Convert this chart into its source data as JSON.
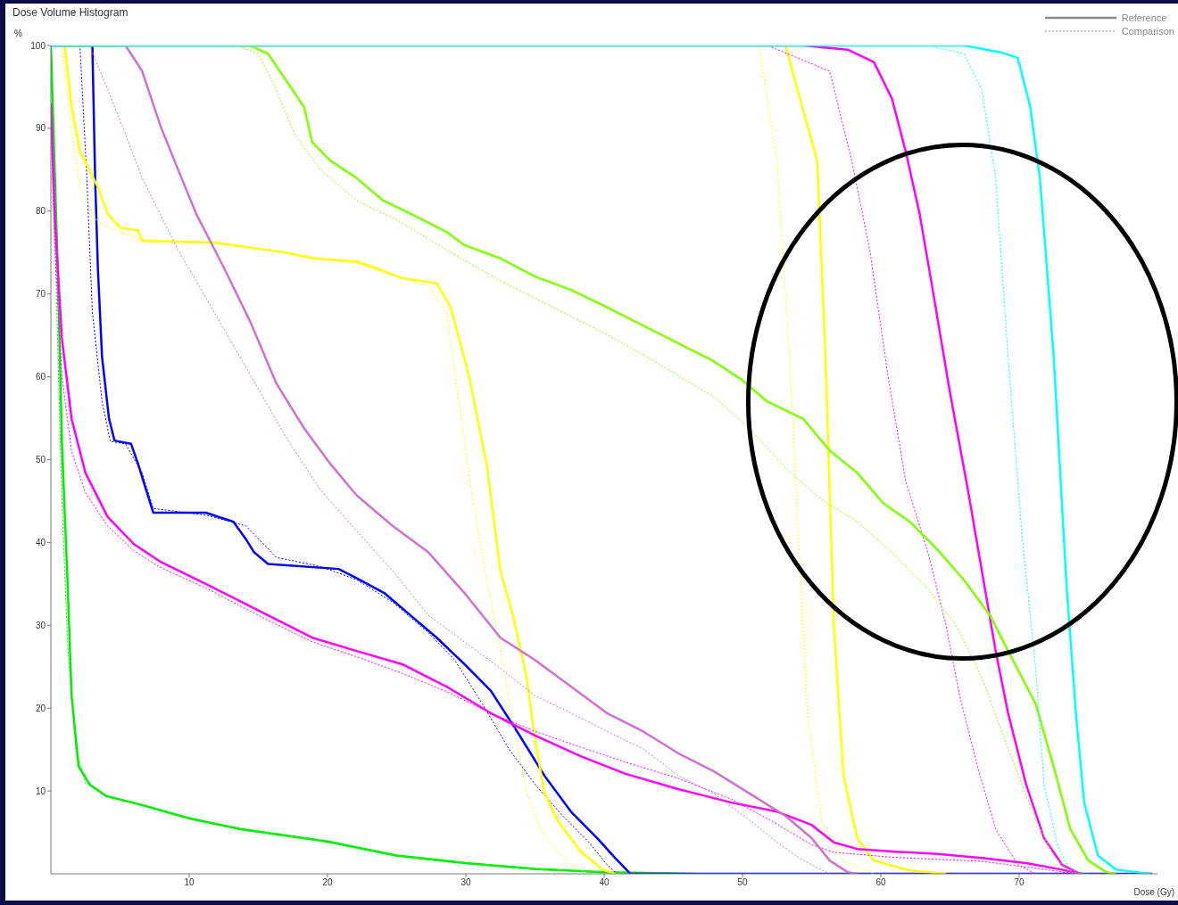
{
  "chart_data": {
    "type": "line",
    "title": "Dose Volume Histogram",
    "xlabel": "Dose (Gy)",
    "ylabel": "%",
    "annotations": [
      "Reference",
      "Comparison"
    ],
    "xlim": [
      0,
      80
    ],
    "xticks": [
      10,
      20,
      30,
      40,
      50,
      60,
      70
    ],
    "ylim": [
      0,
      100
    ],
    "yticks": [
      10,
      20,
      30,
      40,
      50,
      60,
      70,
      80,
      90,
      100
    ],
    "grid": false,
    "series": [
      {
        "color": "#00ee00",
        "line_style": "dotted",
        "x": [
          0,
          0.4,
          0.8,
          1.2,
          1.8,
          2.5,
          4,
          6.6,
          10,
          13.7,
          20,
          25,
          30,
          35,
          40,
          43,
          46.6
        ],
        "values": [
          100,
          70,
          45,
          28,
          15,
          11,
          9.3,
          8.2,
          6.6,
          5.3,
          3.8,
          2.1,
          1.2,
          0.5,
          0.2,
          0.1,
          0
        ]
      },
      {
        "color": "#00ee00",
        "line_style": "solid",
        "x": [
          0,
          0.5,
          0.8,
          1.2,
          1.5,
          2,
          2.8,
          4,
          6.6,
          10,
          13.7,
          20,
          25,
          30,
          35,
          40,
          43,
          46.6
        ],
        "values": [
          100,
          73,
          52,
          35.5,
          21.5,
          13,
          10.8,
          9.4,
          8.3,
          6.7,
          5.4,
          3.9,
          2.2,
          1.3,
          0.6,
          0.2,
          0.1,
          0
        ]
      },
      {
        "color": "#0000ff",
        "line_style": "dotted",
        "x": [
          0,
          2.1,
          2.6,
          3,
          3.7,
          4.3,
          5.4,
          6.6,
          7.4,
          11.2,
          14.1,
          16.3,
          19.5,
          22.1,
          24.7,
          27.3,
          29.2,
          31.2,
          33.1,
          35,
          37,
          38.9,
          40.2,
          40.8
        ],
        "values": [
          100,
          100,
          84,
          67.8,
          57,
          52.2,
          51.9,
          48.4,
          44.1,
          43.3,
          42,
          38.2,
          37.1,
          35.5,
          32.8,
          29.1,
          25.8,
          20.5,
          15.1,
          10.8,
          7,
          3.8,
          1.1,
          0.2
        ]
      },
      {
        "color": "#0000ff",
        "line_style": "solid",
        "x": [
          0,
          2.8,
          3,
          3.2,
          3.4,
          3.7,
          4.2,
          4.6,
          5.8,
          6.3,
          6.8,
          7.4,
          11.2,
          13.2,
          14.1,
          14.7,
          15.7,
          20.8,
          22.1,
          24.1,
          26,
          27.9,
          29.9,
          31.8,
          33.7,
          35.7,
          37.6,
          39.5,
          40.8,
          41.9,
          79.6
        ],
        "values": [
          100,
          100,
          100,
          84,
          73,
          62.4,
          55,
          52.3,
          51.9,
          49.5,
          46.8,
          43.6,
          43.6,
          42.5,
          40.4,
          38.8,
          37.4,
          36.8,
          35.7,
          33.9,
          31.2,
          28.5,
          25.3,
          22.1,
          17.2,
          11.8,
          7.5,
          4.3,
          1.9,
          0,
          0
        ]
      },
      {
        "color": "#ffff00",
        "line_style": "dotted",
        "x": [
          0.8,
          1.5,
          2.1,
          3.4,
          4.7,
          6.6,
          11.8,
          17,
          22.1,
          25.4,
          27.3,
          28.6,
          29.5,
          30.5,
          31.5,
          32.5,
          33.4,
          34.4,
          35.7,
          37.6,
          38.9
        ],
        "values": [
          100,
          89.3,
          82.9,
          78.6,
          77.7,
          76.6,
          76.2,
          75,
          73.7,
          71.9,
          71,
          67.8,
          57,
          45.2,
          35.5,
          26.9,
          18.3,
          9.7,
          4.3,
          1.1,
          0
        ]
      },
      {
        "color": "#ffff00",
        "line_style": "solid",
        "x": [
          1,
          1.5,
          2.1,
          3.4,
          4.1,
          5,
          6.3,
          6.6,
          11.8,
          17,
          18.9,
          22.1,
          23.4,
          25.4,
          27.9,
          28.9,
          30.2,
          31.5,
          32.5,
          33.4,
          34.4,
          35,
          35.7,
          36.6,
          38.3,
          39.9,
          40.8
        ],
        "values": [
          100,
          92.6,
          87.2,
          82.9,
          79.7,
          78,
          77.7,
          76.4,
          76.2,
          75,
          74.3,
          73.9,
          73.2,
          71.9,
          71.3,
          68.4,
          60.3,
          49.5,
          36.6,
          31.2,
          23.7,
          16.1,
          9.7,
          6.5,
          2.7,
          0.5,
          0
        ]
      },
      {
        "color": "#ffff00",
        "line_style": "dotted",
        "x": [
          0,
          51.2,
          52.5,
          53.4,
          54.2,
          54.7,
          55.7,
          57.3,
          59.5
        ],
        "values": [
          100,
          100,
          86.1,
          62.4,
          35.5,
          19.4,
          6.5,
          1.6,
          0
        ]
      },
      {
        "color": "#ffff00",
        "line_style": "solid",
        "x": [
          0,
          53.1,
          55.4,
          56,
          56.6,
          57.3,
          58.3,
          59.5,
          62.1,
          64.7
        ],
        "values": [
          100,
          100,
          86.1,
          62.4,
          30.1,
          11.8,
          4.3,
          1.6,
          0.4,
          0
        ]
      },
      {
        "color": "#ff00ff",
        "line_style": "dotted",
        "x": [
          0,
          0.3,
          0.8,
          1.5,
          2.5,
          4.1,
          6,
          7.9,
          11.2,
          15.7,
          18.9,
          22.1,
          25.4,
          28.6,
          31.8,
          35,
          38.3,
          41.5,
          45.4,
          49.2,
          52.5,
          55,
          56.6,
          60.8,
          67.3,
          72,
          74
        ],
        "values": [
          90,
          75,
          60,
          51,
          46,
          42,
          39,
          37,
          34.5,
          30.6,
          28,
          26.2,
          24.2,
          22,
          19.4,
          17.2,
          15.3,
          13.5,
          11.5,
          9,
          6,
          3.5,
          2.6,
          2,
          1.5,
          0.5,
          0
        ]
      },
      {
        "color": "#ff00ff",
        "line_style": "solid",
        "x": [
          0,
          0.3,
          0.8,
          1.5,
          2.5,
          4.1,
          6,
          7.9,
          11.2,
          15.7,
          18.9,
          22.1,
          25.4,
          28.6,
          31.8,
          35,
          38.3,
          41.5,
          45.4,
          49.2,
          52.5,
          55,
          56.6,
          58.3,
          60.8,
          64.1,
          67.3,
          70.5,
          73.1,
          74.4
        ],
        "values": [
          93,
          78.6,
          64.6,
          54.9,
          48.4,
          43.1,
          39.8,
          37.7,
          35,
          31.2,
          28.5,
          26.9,
          25.3,
          22.6,
          19.4,
          16.7,
          14.2,
          12.1,
          10.2,
          8.6,
          7.5,
          5.9,
          3.8,
          3,
          2.7,
          2.4,
          1.9,
          1.3,
          0.5,
          0
        ]
      },
      {
        "color": "#ff00ff",
        "line_style": "dotted",
        "x": [
          0,
          51.8,
          56.3,
          57.9,
          59.2,
          60.5,
          61.8,
          63.4,
          64.7,
          65.7,
          67,
          68.3,
          69.9,
          71.2
        ],
        "values": [
          100,
          100,
          96.9,
          86.1,
          75.3,
          60.3,
          47.4,
          38.8,
          30.1,
          21.5,
          12.9,
          5.4,
          1.1,
          0
        ]
      },
      {
        "color": "#ff00ff",
        "line_style": "solid",
        "x": [
          0,
          54.4,
          57.6,
          59.5,
          60.8,
          61.8,
          62.8,
          63.7,
          65,
          66.3,
          67.3,
          68.3,
          69.2,
          70.5,
          71.8,
          73.1,
          74.4
        ],
        "values": [
          100,
          100,
          99.5,
          98,
          93.6,
          87.2,
          79.7,
          71,
          58.1,
          46.3,
          36.6,
          26.9,
          19.4,
          10.8,
          4.3,
          1.1,
          0
        ]
      },
      {
        "color": "#d070d0",
        "line_style": "dotted",
        "x": [
          0,
          2.8,
          4.1,
          5.4,
          6.6,
          9.2,
          11.8,
          14.4,
          17,
          19.5,
          22.1,
          24.7,
          27.3,
          29.9,
          32.5,
          35,
          37.6,
          40.2,
          42.8,
          45.4,
          47.9,
          50.5,
          52.5,
          54.4,
          56.3
        ],
        "values": [
          100,
          100,
          94.7,
          89.3,
          84,
          75.3,
          67.8,
          60.3,
          52.7,
          46.3,
          41.4,
          36.6,
          31.2,
          28,
          24.8,
          21.5,
          19.4,
          17.2,
          15.1,
          11.8,
          9.7,
          6.5,
          3.8,
          1.6,
          0
        ]
      },
      {
        "color": "#d070d0",
        "line_style": "solid",
        "x": [
          0,
          5.4,
          6.6,
          7.9,
          9.2,
          10.5,
          12.5,
          14.4,
          16.3,
          18.3,
          20.2,
          22.1,
          24.7,
          27.3,
          29.9,
          32.5,
          35,
          37.6,
          40.2,
          42.8,
          45.4,
          47.9,
          50.5,
          53.1,
          55,
          56.3,
          57.6,
          58.3
        ],
        "values": [
          100,
          100,
          96.9,
          90.4,
          85,
          79.7,
          73.2,
          66.7,
          59.2,
          53.8,
          49.5,
          45.7,
          42,
          38.8,
          33.9,
          28.5,
          25.8,
          22.6,
          19.4,
          17.2,
          14.5,
          12.4,
          9.7,
          7,
          4.3,
          1.6,
          0.2,
          0
        ]
      },
      {
        "color": "#80ff00",
        "line_style": "dotted",
        "x": [
          0,
          13.4,
          15,
          16.3,
          17.6,
          19.5,
          22.1,
          25.4,
          28.6,
          32.5,
          36.3,
          40.2,
          44.1,
          47.9,
          50.5,
          53.1,
          55.7,
          58.3,
          60.8,
          63.4,
          65.4,
          67.3,
          69.2,
          71.2,
          72.5,
          73.7,
          74.7
        ],
        "values": [
          100,
          100,
          99,
          94.7,
          89.3,
          85,
          81.3,
          78.6,
          75.3,
          71.6,
          68.4,
          65.1,
          61.4,
          57.6,
          53.8,
          49,
          45.2,
          42.5,
          38.8,
          34.4,
          30.1,
          23.7,
          15.1,
          6.5,
          2.2,
          0.2,
          0
        ]
      },
      {
        "color": "#80ff00",
        "line_style": "solid",
        "x": [
          0,
          14.4,
          15.7,
          17,
          18.3,
          18.9,
          20.2,
          22.1,
          24,
          26,
          28.6,
          29.9,
          32.5,
          35,
          37.6,
          40.2,
          42.8,
          45.4,
          47.9,
          49.9,
          51.8,
          54.4,
          56.3,
          58.3,
          60.2,
          62.1,
          64,
          66,
          67.9,
          69.2,
          71.2,
          72.5,
          73.7,
          75,
          76.3,
          77
        ],
        "values": [
          100,
          100,
          99,
          95.8,
          92.6,
          88.3,
          86.1,
          84,
          81.3,
          79.7,
          77.5,
          75.9,
          74.3,
          72.1,
          70.5,
          68.4,
          66.2,
          64,
          61.9,
          59.7,
          57,
          54.9,
          51.1,
          48.4,
          44.7,
          42.5,
          39.3,
          35.5,
          31.2,
          26.9,
          20.5,
          12.9,
          5.4,
          1.6,
          0.2,
          0
        ]
      },
      {
        "color": "#00ffff",
        "line_style": "dotted",
        "x": [
          0,
          63.4,
          66,
          67.3,
          68.3,
          69.2,
          70.2,
          71.2,
          71.8,
          72.8,
          73.7,
          75
        ],
        "values": [
          100,
          100,
          99,
          94.7,
          84,
          62.4,
          40.9,
          24.8,
          10.8,
          3.2,
          0.5,
          0
        ]
      },
      {
        "color": "#00ffff",
        "line_style": "solid",
        "x": [
          0,
          66,
          68.6,
          69.9,
          70.8,
          71.5,
          72.5,
          73.4,
          74.1,
          74.7,
          75.7,
          77,
          79.5
        ],
        "values": [
          100,
          100,
          99.2,
          98.5,
          92.6,
          84,
          62.4,
          35.5,
          19.4,
          8.6,
          2.2,
          0.5,
          0
        ]
      }
    ]
  }
}
